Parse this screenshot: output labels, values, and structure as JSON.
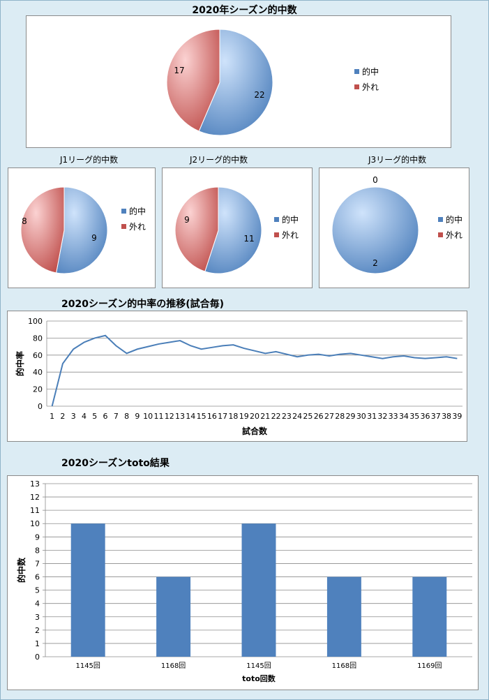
{
  "colors": {
    "hit": "#4f81bd",
    "miss": "#c0504d",
    "hit_light": "#a7c8f0",
    "miss_light": "#f0a0a0",
    "line": "#4a7eb8",
    "bar": "#4f81bd"
  },
  "chart_data": [
    {
      "type": "pie",
      "title": "2020年シーズン的中数",
      "labels": [
        "的中",
        "外れ"
      ],
      "values": [
        22,
        17
      ],
      "legend": "right"
    },
    {
      "type": "pie",
      "title": "J1リーグ的中数",
      "labels": [
        "的中",
        "外れ"
      ],
      "values": [
        9,
        8
      ],
      "legend": "right"
    },
    {
      "type": "pie",
      "title": "J2リーグ的中数",
      "labels": [
        "的中",
        "外れ"
      ],
      "values": [
        11,
        9
      ],
      "legend": "right"
    },
    {
      "type": "pie",
      "title": "J3リーグ的中数",
      "labels": [
        "的中",
        "外れ"
      ],
      "values": [
        2,
        0
      ],
      "legend": "right"
    },
    {
      "type": "line",
      "title": "2020シーズン的中率の推移(試合毎)",
      "xlabel": "試合数",
      "ylabel": "的中率",
      "x": [
        1,
        2,
        3,
        4,
        5,
        6,
        7,
        8,
        9,
        10,
        11,
        12,
        13,
        14,
        15,
        16,
        17,
        18,
        19,
        20,
        21,
        22,
        23,
        24,
        25,
        26,
        27,
        28,
        29,
        30,
        31,
        32,
        33,
        34,
        35,
        36,
        37,
        38,
        39
      ],
      "y": [
        0,
        50,
        67,
        75,
        80,
        83,
        71,
        62,
        67,
        70,
        73,
        75,
        77,
        71,
        67,
        69,
        71,
        72,
        68,
        65,
        62,
        64,
        61,
        58,
        60,
        61,
        59,
        61,
        62,
        60,
        58,
        56,
        58,
        59,
        57,
        56,
        57,
        58,
        56
      ],
      "ylim": [
        0,
        100
      ],
      "yticks": [
        0,
        20,
        40,
        60,
        80,
        100
      ],
      "grid": true
    },
    {
      "type": "bar",
      "title": "2020シーズンtoto結果",
      "xlabel": "toto回数",
      "ylabel": "的中数",
      "categories": [
        "1145回",
        "1168回",
        "1145回",
        "1168回",
        "1169回"
      ],
      "values": [
        10,
        6,
        10,
        6,
        6
      ],
      "ylim": [
        0,
        13
      ],
      "yticks": [
        0,
        1,
        2,
        3,
        4,
        5,
        6,
        7,
        8,
        9,
        10,
        11,
        12,
        13
      ],
      "grid": true
    }
  ]
}
